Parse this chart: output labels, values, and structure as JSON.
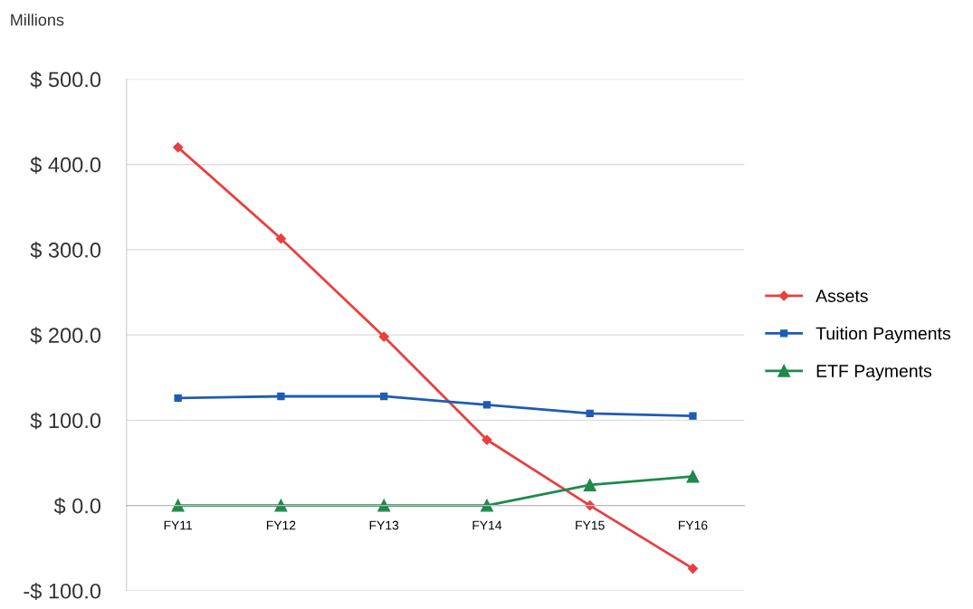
{
  "chart_data": {
    "type": "line",
    "ylabel": "Millions",
    "categories": [
      "FY11",
      "FY12",
      "FY13",
      "FY14",
      "FY15",
      "FY16"
    ],
    "series": [
      {
        "name": "Assets",
        "color": "#e8403f",
        "marker": "diamond",
        "values": [
          420,
          313,
          198,
          77,
          0,
          -74
        ]
      },
      {
        "name": "Tuition Payments",
        "color": "#1f5bb5",
        "marker": "square",
        "values": [
          126,
          128,
          128,
          118,
          108,
          105
        ]
      },
      {
        "name": "ETF Payments",
        "color": "#1e8a4c",
        "marker": "triangle",
        "values": [
          0,
          0,
          0,
          0,
          24,
          34
        ]
      }
    ],
    "ylim": [
      -100,
      500
    ],
    "yticks": [
      {
        "value": -100,
        "label": "-$ 100.0"
      },
      {
        "value": 0,
        "label": "$ 0.0"
      },
      {
        "value": 100,
        "label": "$ 100.0"
      },
      {
        "value": 200,
        "label": "$ 200.0"
      },
      {
        "value": 300,
        "label": "$ 300.0"
      },
      {
        "value": 400,
        "label": "$ 400.0"
      },
      {
        "value": 500,
        "label": "$ 500.0"
      }
    ],
    "grid": "y",
    "legend": "right",
    "line_style": "solid"
  }
}
